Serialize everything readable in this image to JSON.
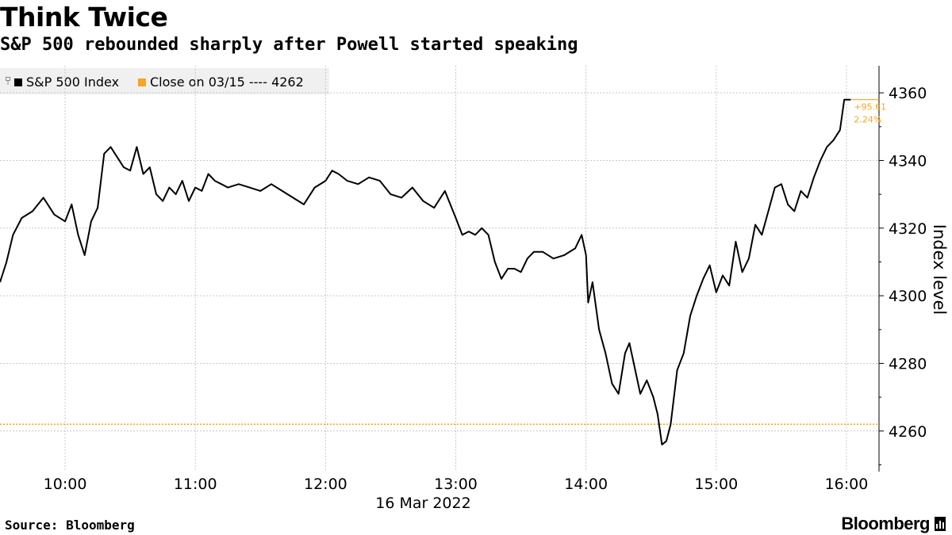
{
  "header": {
    "title": "Think Twice",
    "subtitle": "S&P 500 rebounded sharply after Powell started speaking"
  },
  "legend": {
    "items": [
      {
        "label": "S&P 500 Index",
        "color": "#000000"
      },
      {
        "label": "Close on 03/15 ---- 4262",
        "color": "#f5a623"
      }
    ]
  },
  "footer": {
    "source": "Source: Bloomberg",
    "brand": "Bloomberg"
  },
  "chart_data": {
    "type": "line",
    "title": "Think Twice",
    "subtitle": "S&P 500 rebounded sharply after Powell started speaking",
    "xlabel": "16 Mar 2022",
    "ylabel": "Index level",
    "x_ticks": [
      "10:00",
      "11:00",
      "12:00",
      "13:00",
      "14:00",
      "15:00",
      "16:00"
    ],
    "y_ticks": [
      "4260",
      "4280",
      "4300",
      "4320",
      "4340",
      "4360"
    ],
    "xlim": [
      "09:30",
      "16:15"
    ],
    "ylim": [
      4248,
      4368
    ],
    "grid": true,
    "legend_position": "top-left",
    "reference_line": {
      "name": "Close on 03/15",
      "value": 4262,
      "color": "#f5a623",
      "style": "dotted"
    },
    "annotation": {
      "change": "+95.61",
      "percent": "2.24%",
      "color": "#f5a623"
    },
    "series": [
      {
        "name": "S&P 500 Index",
        "color": "#000000",
        "points": [
          [
            "09:30",
            4304
          ],
          [
            "09:33",
            4310
          ],
          [
            "09:36",
            4318
          ],
          [
            "09:40",
            4323
          ],
          [
            "09:45",
            4325
          ],
          [
            "09:50",
            4329
          ],
          [
            "09:55",
            4324
          ],
          [
            "10:00",
            4322
          ],
          [
            "10:03",
            4327
          ],
          [
            "10:06",
            4318
          ],
          [
            "10:09",
            4312
          ],
          [
            "10:12",
            4322
          ],
          [
            "10:15",
            4326
          ],
          [
            "10:18",
            4342
          ],
          [
            "10:21",
            4344
          ],
          [
            "10:24",
            4341
          ],
          [
            "10:27",
            4338
          ],
          [
            "10:30",
            4337
          ],
          [
            "10:33",
            4344
          ],
          [
            "10:36",
            4336
          ],
          [
            "10:39",
            4338
          ],
          [
            "10:42",
            4330
          ],
          [
            "10:45",
            4328
          ],
          [
            "10:48",
            4332
          ],
          [
            "10:51",
            4330
          ],
          [
            "10:54",
            4334
          ],
          [
            "10:57",
            4328
          ],
          [
            "11:00",
            4332
          ],
          [
            "11:03",
            4331
          ],
          [
            "11:06",
            4336
          ],
          [
            "11:09",
            4334
          ],
          [
            "11:12",
            4333
          ],
          [
            "11:15",
            4332
          ],
          [
            "11:20",
            4333
          ],
          [
            "11:25",
            4332
          ],
          [
            "11:30",
            4331
          ],
          [
            "11:35",
            4333
          ],
          [
            "11:40",
            4331
          ],
          [
            "11:45",
            4329
          ],
          [
            "11:50",
            4327
          ],
          [
            "11:55",
            4332
          ],
          [
            "12:00",
            4334
          ],
          [
            "12:03",
            4337
          ],
          [
            "12:06",
            4336
          ],
          [
            "12:10",
            4334
          ],
          [
            "12:15",
            4333
          ],
          [
            "12:20",
            4335
          ],
          [
            "12:25",
            4334
          ],
          [
            "12:30",
            4330
          ],
          [
            "12:35",
            4329
          ],
          [
            "12:40",
            4332
          ],
          [
            "12:45",
            4328
          ],
          [
            "12:50",
            4326
          ],
          [
            "12:55",
            4331
          ],
          [
            "13:00",
            4323
          ],
          [
            "13:03",
            4318
          ],
          [
            "13:06",
            4319
          ],
          [
            "13:09",
            4318
          ],
          [
            "13:12",
            4320
          ],
          [
            "13:15",
            4318
          ],
          [
            "13:18",
            4310
          ],
          [
            "13:21",
            4305
          ],
          [
            "13:24",
            4308
          ],
          [
            "13:27",
            4308
          ],
          [
            "13:30",
            4307
          ],
          [
            "13:33",
            4311
          ],
          [
            "13:36",
            4313
          ],
          [
            "13:40",
            4313
          ],
          [
            "13:45",
            4311
          ],
          [
            "13:50",
            4312
          ],
          [
            "13:55",
            4314
          ],
          [
            "13:58",
            4318
          ],
          [
            "14:00",
            4312
          ],
          [
            "14:01",
            4298
          ],
          [
            "14:03",
            4304
          ],
          [
            "14:06",
            4290
          ],
          [
            "14:09",
            4283
          ],
          [
            "14:12",
            4274
          ],
          [
            "14:15",
            4271
          ],
          [
            "14:18",
            4283
          ],
          [
            "14:20",
            4286
          ],
          [
            "14:22",
            4280
          ],
          [
            "14:25",
            4271
          ],
          [
            "14:28",
            4275
          ],
          [
            "14:31",
            4270
          ],
          [
            "14:33",
            4265
          ],
          [
            "14:35",
            4256
          ],
          [
            "14:37",
            4257
          ],
          [
            "14:39",
            4262
          ],
          [
            "14:42",
            4278
          ],
          [
            "14:45",
            4283
          ],
          [
            "14:48",
            4294
          ],
          [
            "14:51",
            4300
          ],
          [
            "14:54",
            4305
          ],
          [
            "14:57",
            4309
          ],
          [
            "15:00",
            4301
          ],
          [
            "15:03",
            4306
          ],
          [
            "15:06",
            4303
          ],
          [
            "15:09",
            4316
          ],
          [
            "15:12",
            4307
          ],
          [
            "15:15",
            4311
          ],
          [
            "15:18",
            4321
          ],
          [
            "15:21",
            4318
          ],
          [
            "15:24",
            4325
          ],
          [
            "15:27",
            4332
          ],
          [
            "15:30",
            4333
          ],
          [
            "15:33",
            4327
          ],
          [
            "15:36",
            4325
          ],
          [
            "15:39",
            4331
          ],
          [
            "15:42",
            4329
          ],
          [
            "15:45",
            4335
          ],
          [
            "15:48",
            4340
          ],
          [
            "15:51",
            4344
          ],
          [
            "15:54",
            4346
          ],
          [
            "15:57",
            4349
          ],
          [
            "15:59",
            4358
          ],
          [
            "16:00",
            4358
          ],
          [
            "16:02",
            4358
          ]
        ]
      }
    ]
  }
}
